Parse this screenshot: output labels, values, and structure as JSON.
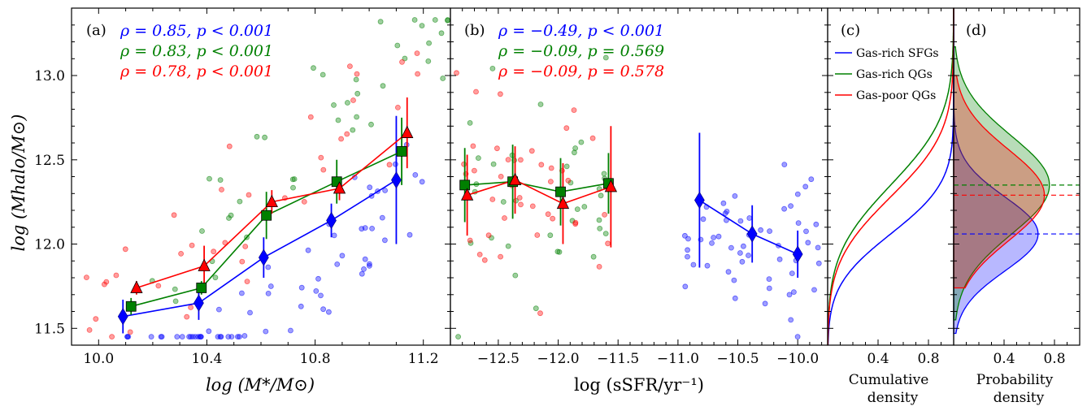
{
  "colors": {
    "sfg": "#0000ff",
    "qg": "#008000",
    "gpqg": "#ff0000",
    "axis": "#000000"
  },
  "panels": {
    "a": {
      "label": "(a)",
      "xlabel": "log (M*/M⊙)",
      "ylabel": "log (Mhalo/M⊙)",
      "xticks": [
        "10.0",
        "10.4",
        "10.8",
        "11.2"
      ],
      "yticks": [
        "11.5",
        "12.0",
        "12.5",
        "13.0"
      ],
      "stats": [
        "ρ = 0.85, p < 0.001",
        "ρ = 0.83, p < 0.001",
        "ρ = 0.78, p < 0.001"
      ]
    },
    "b": {
      "label": "(b)",
      "xlabel": "log (sSFR/yr⁻¹)",
      "xticks": [
        "−12.5",
        "−12.0",
        "−11.5",
        "−11.0",
        "−10.5",
        "−10.0"
      ],
      "stats": [
        "ρ = −0.49, p < 0.001",
        "ρ = −0.09, p = 0.569",
        "ρ = −0.09, p = 0.578"
      ]
    },
    "c": {
      "label": "(c)",
      "xlabel_line1": "Cumulative",
      "xlabel_line2": "density",
      "xticks": [
        "0.4",
        "0.8"
      ]
    },
    "d": {
      "label": "(d)",
      "xlabel_line1": "Probability",
      "xlabel_line2": "density",
      "xticks": [
        "0.4",
        "0.8"
      ]
    }
  },
  "legend": [
    "Gas-rich SFGs",
    "Gas-rich QGs",
    "Gas-poor QGs"
  ],
  "chart_data": {
    "type": "scatter",
    "ylim": [
      11.4,
      13.4
    ],
    "panel_a": {
      "xlim": [
        9.9,
        11.3
      ],
      "series": [
        {
          "name": "Gas-rich SFGs",
          "marker": "diamond",
          "x": [
            10.09,
            10.37,
            10.61,
            10.86,
            11.1
          ],
          "y": [
            11.57,
            11.65,
            11.92,
            12.14,
            12.38
          ],
          "err": [
            0.1,
            0.1,
            0.12,
            0.1,
            0.38
          ]
        },
        {
          "name": "Gas-rich QGs",
          "marker": "square",
          "x": [
            10.12,
            10.38,
            10.62,
            10.88,
            11.12
          ],
          "y": [
            11.63,
            11.74,
            12.17,
            12.37,
            12.55
          ],
          "err": [
            0.05,
            0.04,
            0.14,
            0.13,
            0.2
          ]
        },
        {
          "name": "Gas-poor QGs",
          "marker": "triangle",
          "x": [
            10.14,
            10.39,
            10.64,
            10.89,
            11.14
          ],
          "y": [
            11.74,
            11.87,
            12.25,
            12.33,
            12.66
          ],
          "err": [
            0.04,
            0.12,
            0.07,
            0.07,
            0.21
          ]
        }
      ]
    },
    "panel_b": {
      "xlim": [
        -12.9,
        -9.75
      ],
      "series": [
        {
          "name": "Gas-rich SFGs",
          "marker": "diamond",
          "x": [
            -10.82,
            -10.38,
            -10.0
          ],
          "y": [
            12.26,
            12.06,
            11.94
          ],
          "err": [
            0.4,
            0.17,
            0.14
          ]
        },
        {
          "name": "Gas-rich QGs",
          "marker": "square",
          "x": [
            -12.78,
            -12.38,
            -11.98,
            -11.58
          ],
          "y": [
            12.35,
            12.37,
            12.31,
            12.36
          ],
          "err": [
            0.22,
            0.22,
            0.2,
            0.18
          ]
        },
        {
          "name": "Gas-poor QGs",
          "marker": "triangle",
          "x": [
            -12.76,
            -12.36,
            -11.96,
            -11.56
          ],
          "y": [
            12.29,
            12.38,
            12.24,
            12.34
          ],
          "err": [
            0.24,
            0.2,
            0.24,
            0.36
          ]
        }
      ]
    },
    "panel_c": {
      "type": "cumulative",
      "xlim": [
        0,
        1.0
      ],
      "series": [
        {
          "name": "Gas-rich SFGs",
          "mu": 12.06,
          "sigma": 0.24
        },
        {
          "name": "Gas-rich QGs",
          "mu": 12.35,
          "sigma": 0.32
        },
        {
          "name": "Gas-poor QGs",
          "mu": 12.28,
          "sigma": 0.3
        }
      ]
    },
    "panel_d": {
      "type": "density",
      "xlim": [
        0,
        1.0
      ],
      "series": [
        {
          "name": "Gas-rich SFGs",
          "mu": 12.06,
          "sigma": 0.22,
          "lo": 11.47,
          "hi": 13.35,
          "peak": 0.67
        },
        {
          "name": "Gas-rich QGs",
          "mu": 12.35,
          "sigma": 0.29,
          "lo": 11.55,
          "hi": 13.17,
          "peak": 0.76
        },
        {
          "name": "Gas-poor QGs",
          "mu": 12.29,
          "sigma": 0.27,
          "lo": 11.74,
          "hi": 13.0,
          "peak": 0.72
        }
      ]
    }
  }
}
